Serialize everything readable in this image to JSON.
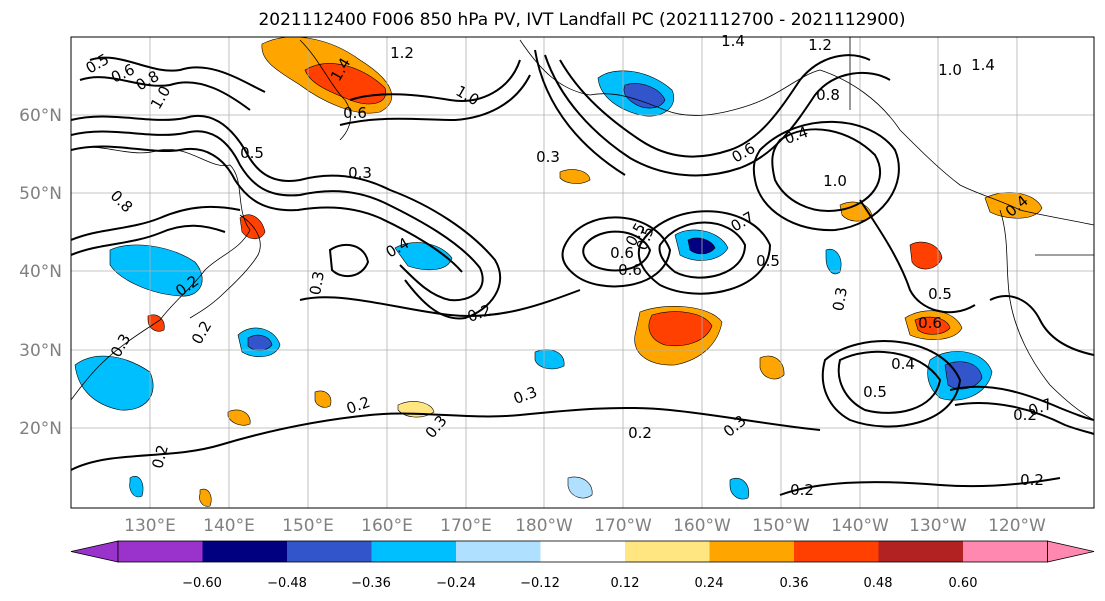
{
  "title": "2021112400 F006 850 hPa PV, IVT Landfall PC (2021112700 - 2021112900)",
  "lat_labels": [
    "60°N",
    "50°N",
    "40°N",
    "30°N",
    "20°N"
  ],
  "lon_labels": [
    "130°E",
    "140°E",
    "150°E",
    "160°E",
    "170°E",
    "180°W",
    "170°W",
    "160°W",
    "150°W",
    "140°W",
    "130°W",
    "120°W"
  ],
  "colorbar": {
    "ticks": [
      "−0.60",
      "−0.48",
      "−0.36",
      "−0.24",
      "−0.12",
      "0.12",
      "0.24",
      "0.36",
      "0.48",
      "0.60"
    ],
    "colors": [
      "#9933cc",
      "#000080",
      "#3355cc",
      "#00bfff",
      "#b0e0ff",
      "#ffffff",
      "#ffe680",
      "#ffa500",
      "#ff4000",
      "#b22222",
      "#ff88b0"
    ]
  },
  "contour_labels": [
    "1.4",
    "1.2",
    "1.0",
    "0.8",
    "0.6",
    "0.5",
    "0.4",
    "0.3",
    "0.2"
  ],
  "contour_label_instances": [
    "0.5",
    "0.6",
    "0.8",
    "1.0",
    "1.2",
    "1.4",
    "1.0",
    "0.6",
    "0.5",
    "0.3",
    "0.8",
    "0.3",
    "0.2",
    "0.3",
    "1.4",
    "1.2",
    "1.0",
    "1.4",
    "0.8",
    "0.4",
    "0.6",
    "0.5",
    "0.6",
    "0.7",
    "0.5",
    "1.0",
    "0.4",
    "0.5",
    "0.6",
    "0.4",
    "0.5",
    "0.7",
    "0.3",
    "0.2",
    "0.3",
    "0.2",
    "0.3",
    "0.2",
    "0.2",
    "0.3",
    "0.6",
    "0.2",
    "0.5",
    "0.2",
    "0.3",
    "0.4",
    "0.2",
    "0.2"
  ]
}
